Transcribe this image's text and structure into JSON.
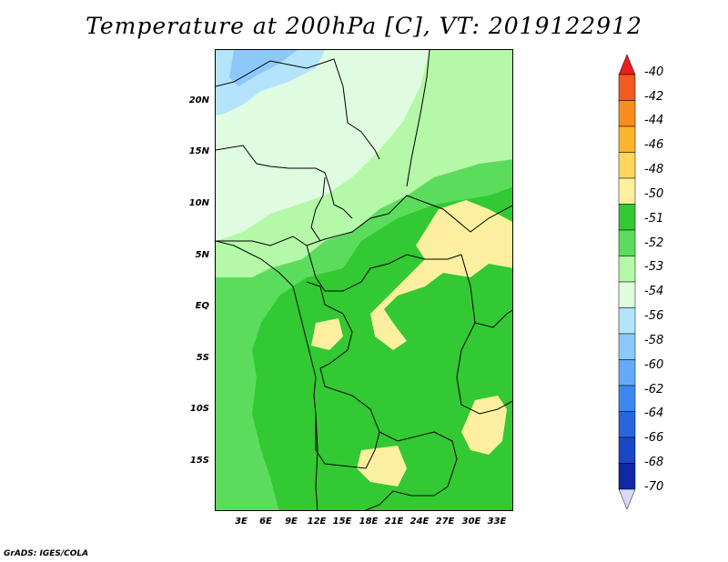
{
  "title": "Temperature at 200hPa [C], VT: 2019122912",
  "credit": "GrADS: IGES/COLA",
  "lat_labels": [
    "20N",
    "15N",
    "10N",
    "5N",
    "EQ",
    "5S",
    "10S",
    "15S"
  ],
  "lon_labels": [
    "3E",
    "6E",
    "9E",
    "12E",
    "15E",
    "18E",
    "21E",
    "24E",
    "27E",
    "30E",
    "33E"
  ],
  "colorbar": {
    "labels": [
      "-40",
      "-42",
      "-44",
      "-46",
      "-48",
      "-50",
      "-51",
      "-52",
      "-53",
      "-54",
      "-56",
      "-58",
      "-60",
      "-62",
      "-64",
      "-66",
      "-68",
      "-70"
    ],
    "colors": [
      "#e81e1e",
      "#f35a1e",
      "#f98c1e",
      "#fbb42c",
      "#fcd65e",
      "#fcf0a0",
      "#32c932",
      "#5cdc5c",
      "#b4f8a8",
      "#e0fce0",
      "#b4e4fc",
      "#8cc8fc",
      "#64aaf8",
      "#3c88f0",
      "#2866e0",
      "#1a46c8",
      "#0e28a8",
      "#0a0a78"
    ]
  }
}
